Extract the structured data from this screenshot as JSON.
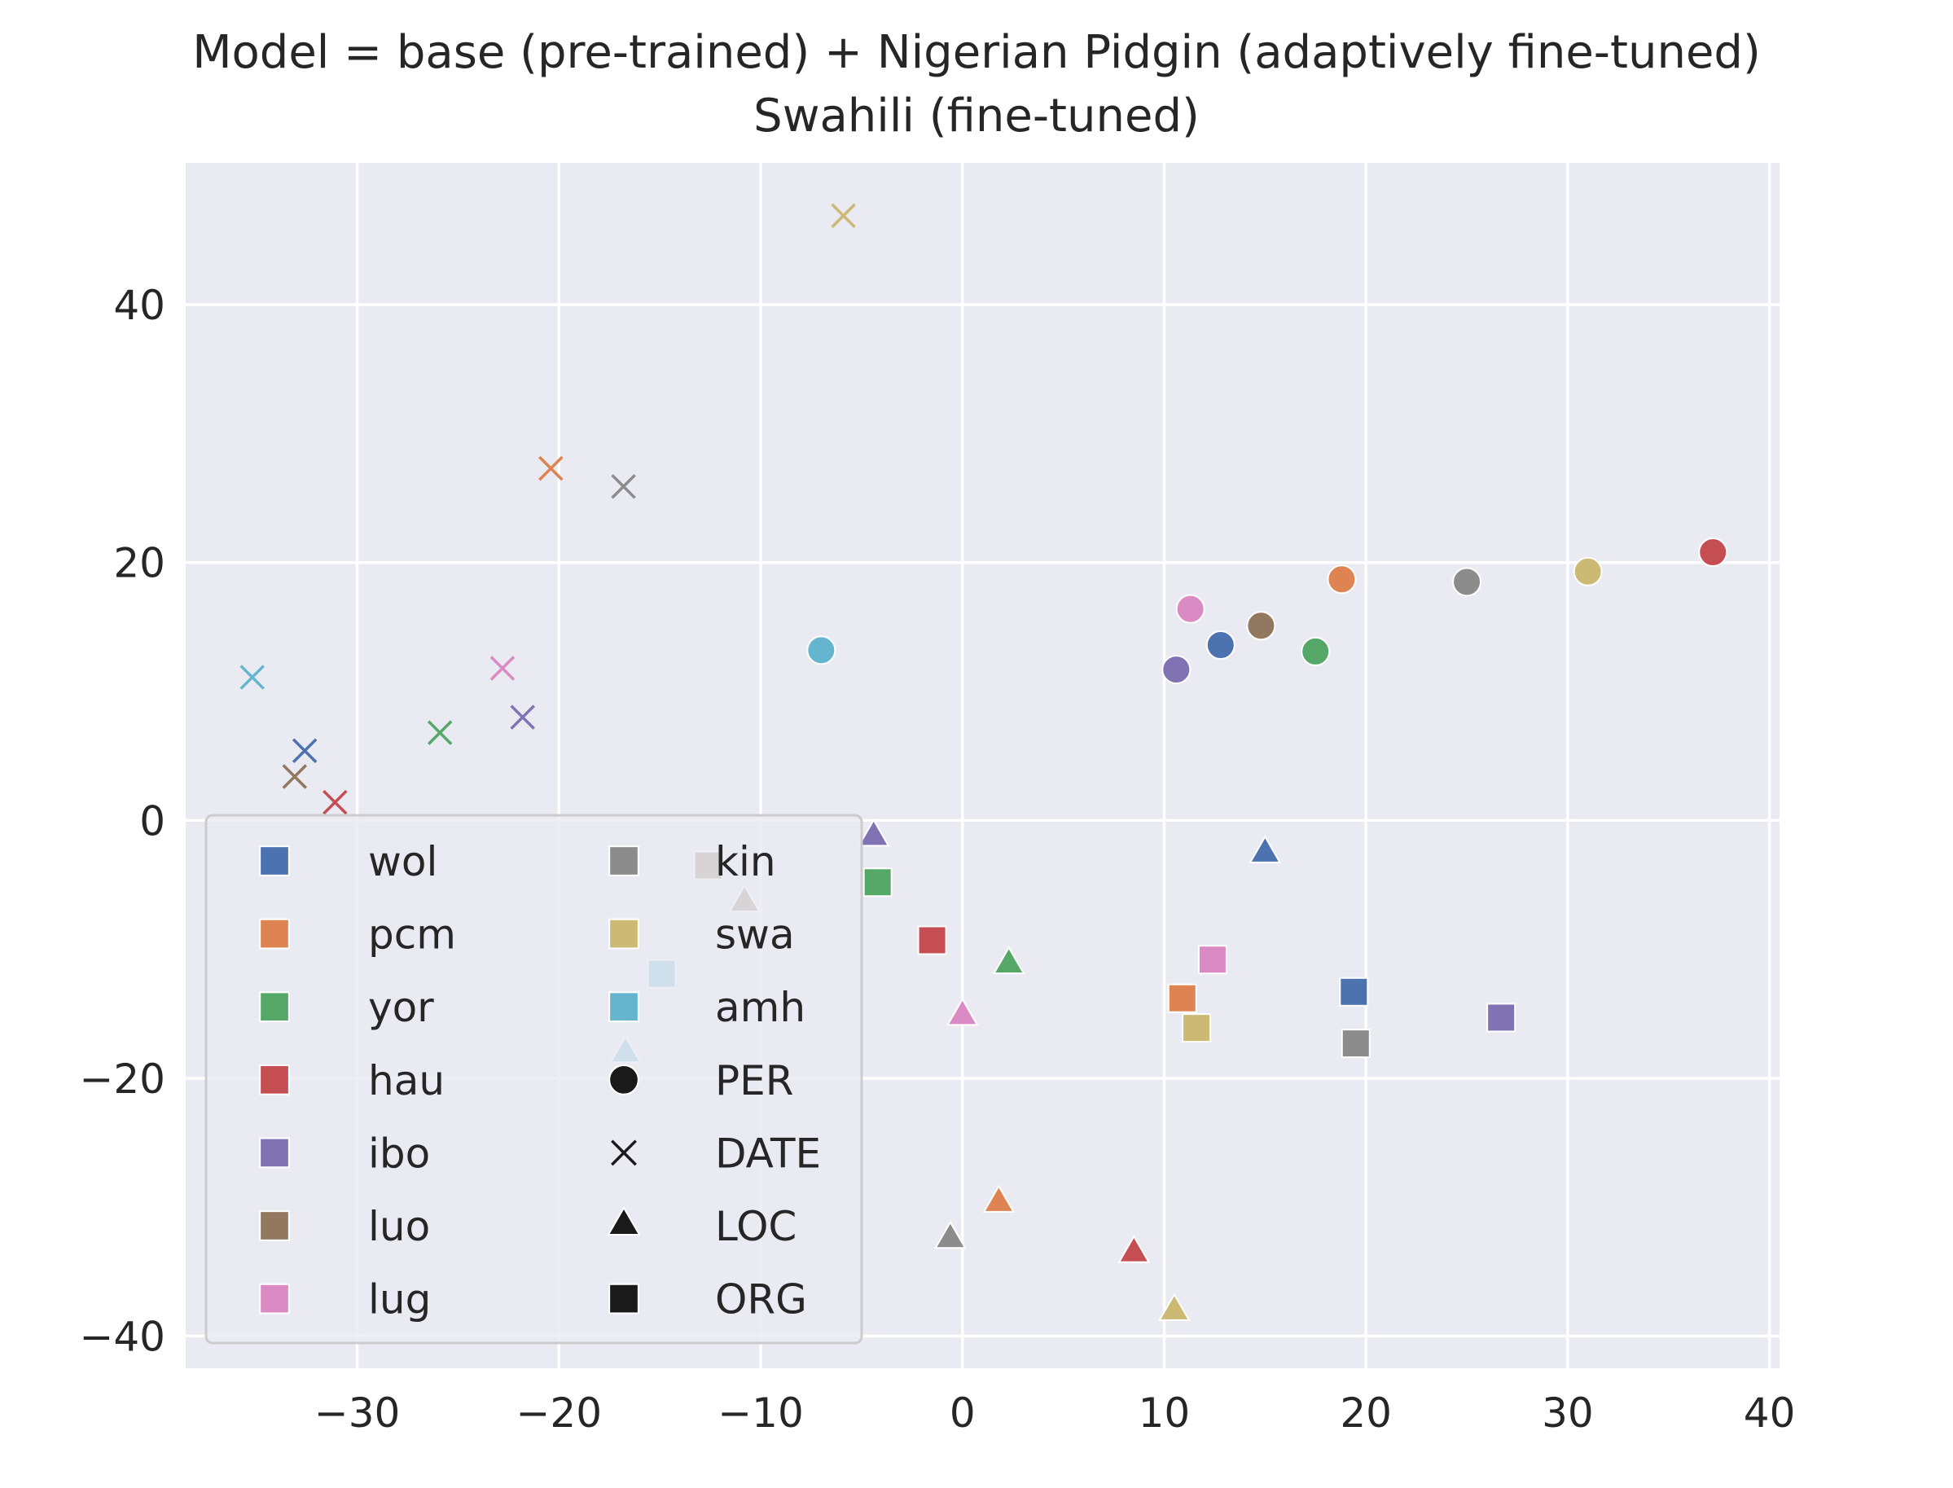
{
  "chart_data": {
    "type": "scatter",
    "title_line1": "Model = base (pre-trained) + Nigerian Pidgin (adaptively fine-tuned)",
    "title_line2": "Swahili (fine-tuned)",
    "xlabel": "",
    "ylabel": "",
    "xlim": [
      -38.5,
      40.5
    ],
    "ylim": [
      -42.5,
      51
    ],
    "xticks": [
      -30,
      -20,
      -10,
      0,
      10,
      20,
      30,
      40
    ],
    "xtick_labels": [
      "−30",
      "−20",
      "−10",
      "0",
      "10",
      "20",
      "30",
      "40"
    ],
    "yticks": [
      -40,
      -20,
      0,
      20,
      40
    ],
    "ytick_labels": [
      "−40",
      "−20",
      "0",
      "20",
      "40"
    ],
    "grid": true,
    "legend_position": "lower-left",
    "languages": [
      {
        "name": "wol",
        "color": "#4c72b0"
      },
      {
        "name": "pcm",
        "color": "#dd8452"
      },
      {
        "name": "yor",
        "color": "#55a868"
      },
      {
        "name": "hau",
        "color": "#c44e52"
      },
      {
        "name": "ibo",
        "color": "#8172b3"
      },
      {
        "name": "luo",
        "color": "#937860"
      },
      {
        "name": "lug",
        "color": "#da8bc3"
      },
      {
        "name": "kin",
        "color": "#8c8c8c"
      },
      {
        "name": "swa",
        "color": "#ccb974"
      },
      {
        "name": "amh",
        "color": "#64b5cd"
      }
    ],
    "entity_types": [
      {
        "name": "PER",
        "marker": "circle"
      },
      {
        "name": "DATE",
        "marker": "x"
      },
      {
        "name": "LOC",
        "marker": "triangle"
      },
      {
        "name": "ORG",
        "marker": "square"
      }
    ],
    "points": [
      {
        "lang": "wol",
        "type": "PER",
        "x": 12.8,
        "y": 13.6
      },
      {
        "lang": "pcm",
        "type": "PER",
        "x": 18.8,
        "y": 18.7
      },
      {
        "lang": "yor",
        "type": "PER",
        "x": 17.5,
        "y": 13.1
      },
      {
        "lang": "hau",
        "type": "PER",
        "x": 37.2,
        "y": 20.8
      },
      {
        "lang": "ibo",
        "type": "PER",
        "x": 10.6,
        "y": 11.7
      },
      {
        "lang": "luo",
        "type": "PER",
        "x": 14.8,
        "y": 15.1
      },
      {
        "lang": "lug",
        "type": "PER",
        "x": 11.3,
        "y": 16.4
      },
      {
        "lang": "kin",
        "type": "PER",
        "x": 25.0,
        "y": 18.5
      },
      {
        "lang": "swa",
        "type": "PER",
        "x": 31.0,
        "y": 19.3
      },
      {
        "lang": "amh",
        "type": "PER",
        "x": -7.0,
        "y": 13.2
      },
      {
        "lang": "wol",
        "type": "DATE",
        "x": -32.6,
        "y": 5.4
      },
      {
        "lang": "pcm",
        "type": "DATE",
        "x": -20.4,
        "y": 27.3
      },
      {
        "lang": "yor",
        "type": "DATE",
        "x": -25.9,
        "y": 6.8
      },
      {
        "lang": "hau",
        "type": "DATE",
        "x": -31.1,
        "y": 1.4
      },
      {
        "lang": "ibo",
        "type": "DATE",
        "x": -21.8,
        "y": 8.0
      },
      {
        "lang": "luo",
        "type": "DATE",
        "x": -33.1,
        "y": 3.4
      },
      {
        "lang": "lug",
        "type": "DATE",
        "x": -22.8,
        "y": 11.8
      },
      {
        "lang": "kin",
        "type": "DATE",
        "x": -16.8,
        "y": 25.9
      },
      {
        "lang": "swa",
        "type": "DATE",
        "x": -5.9,
        "y": 46.9
      },
      {
        "lang": "amh",
        "type": "DATE",
        "x": -35.2,
        "y": 11.1
      },
      {
        "lang": "wol",
        "type": "LOC",
        "x": 15.0,
        "y": -2.6
      },
      {
        "lang": "pcm",
        "type": "LOC",
        "x": 1.8,
        "y": -29.7
      },
      {
        "lang": "yor",
        "type": "LOC",
        "x": 2.3,
        "y": -11.2
      },
      {
        "lang": "hau",
        "type": "LOC",
        "x": 8.5,
        "y": -33.6
      },
      {
        "lang": "ibo",
        "type": "LOC",
        "x": -4.4,
        "y": -1.3
      },
      {
        "lang": "luo",
        "type": "LOC",
        "x": -10.8,
        "y": -6.4
      },
      {
        "lang": "lug",
        "type": "LOC",
        "x": 0.0,
        "y": -15.2
      },
      {
        "lang": "kin",
        "type": "LOC",
        "x": -0.6,
        "y": -32.5
      },
      {
        "lang": "swa",
        "type": "LOC",
        "x": 10.5,
        "y": -38.1
      },
      {
        "lang": "amh",
        "type": "LOC",
        "x": -16.7,
        "y": -18.1
      },
      {
        "lang": "wol",
        "type": "ORG",
        "x": 19.4,
        "y": -13.3
      },
      {
        "lang": "pcm",
        "type": "ORG",
        "x": 10.9,
        "y": -13.8
      },
      {
        "lang": "yor",
        "type": "ORG",
        "x": -4.2,
        "y": -4.8
      },
      {
        "lang": "hau",
        "type": "ORG",
        "x": -1.5,
        "y": -9.3
      },
      {
        "lang": "ibo",
        "type": "ORG",
        "x": 26.7,
        "y": -15.3
      },
      {
        "lang": "luo",
        "type": "ORG",
        "x": -12.6,
        "y": -3.5
      },
      {
        "lang": "lug",
        "type": "ORG",
        "x": 12.4,
        "y": -10.8
      },
      {
        "lang": "kin",
        "type": "ORG",
        "x": 19.5,
        "y": -17.3
      },
      {
        "lang": "swa",
        "type": "ORG",
        "x": 11.6,
        "y": -16.1
      },
      {
        "lang": "amh",
        "type": "ORG",
        "x": -14.9,
        "y": -11.9
      }
    ]
  }
}
